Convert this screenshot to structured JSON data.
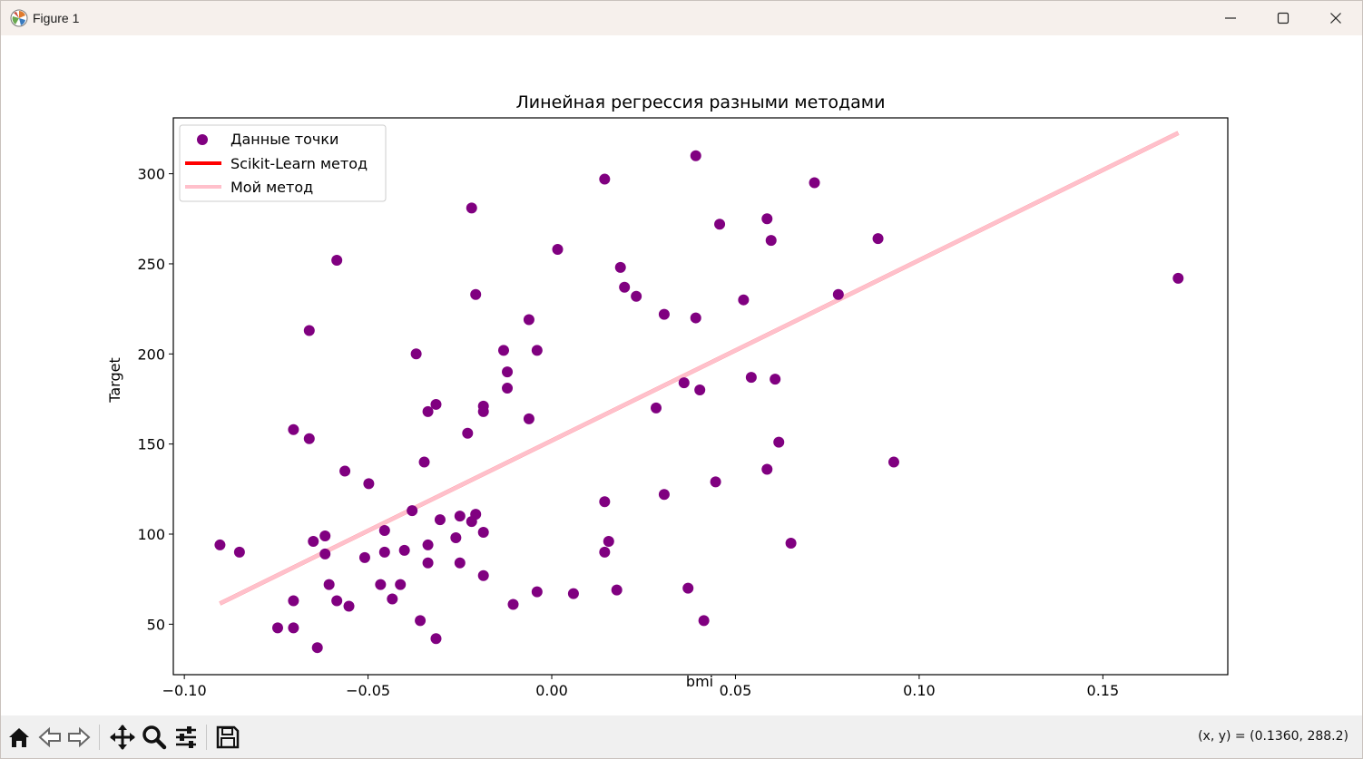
{
  "window": {
    "title": "Figure 1",
    "icon": "matplotlib-icon"
  },
  "controls": {
    "minimize": "minimize-icon",
    "maximize": "maximize-icon",
    "close": "close-icon"
  },
  "toolbar": {
    "tools": [
      "home-icon",
      "back-icon",
      "forward-icon",
      "pan-icon",
      "zoom-icon",
      "configure-subplots-icon",
      "save-icon"
    ],
    "coordinates": "(x, y) = (0.1360, 288.2)"
  },
  "chart_data": {
    "type": "scatter",
    "title": "Линейная регрессия разными методами",
    "xlabel": "bmi",
    "ylabel": "Target",
    "xlim": [
      -0.103,
      0.184
    ],
    "ylim": [
      22,
      331
    ],
    "xticks": [
      -0.1,
      -0.05,
      0.0,
      0.05,
      0.1,
      0.15
    ],
    "xtick_labels": [
      "−0.10",
      "−0.05",
      "0.00",
      "0.05",
      "0.10",
      "0.15"
    ],
    "yticks": [
      50,
      100,
      150,
      200,
      250,
      300
    ],
    "ytick_labels": [
      "50",
      "100",
      "150",
      "200",
      "250",
      "300"
    ],
    "grid": false,
    "legend_position": "upper-left",
    "legend": [
      {
        "label": "Данные точки",
        "kind": "marker",
        "color": "#800080"
      },
      {
        "label": "Scikit-Learn метод",
        "kind": "line",
        "color": "#ff0000"
      },
      {
        "label": "Мой метод",
        "kind": "line",
        "color": "#ffc0cb"
      }
    ],
    "series": [
      {
        "name": "Данные точки",
        "type": "scatter",
        "color": "#800080",
        "points": [
          [
            -0.0903,
            94
          ],
          [
            -0.085,
            90
          ],
          [
            -0.0746,
            48
          ],
          [
            -0.0703,
            158
          ],
          [
            -0.0703,
            63
          ],
          [
            -0.0703,
            48
          ],
          [
            -0.066,
            213
          ],
          [
            -0.066,
            153
          ],
          [
            -0.0649,
            96
          ],
          [
            -0.0638,
            37
          ],
          [
            -0.0617,
            99
          ],
          [
            -0.0617,
            89
          ],
          [
            -0.0606,
            72
          ],
          [
            -0.0585,
            252
          ],
          [
            -0.0585,
            63
          ],
          [
            -0.0563,
            135
          ],
          [
            -0.0552,
            60
          ],
          [
            -0.0498,
            128
          ],
          [
            -0.0509,
            87
          ],
          [
            -0.0466,
            72
          ],
          [
            -0.0455,
            102
          ],
          [
            -0.0455,
            90
          ],
          [
            -0.0434,
            64
          ],
          [
            -0.0412,
            72
          ],
          [
            -0.0401,
            91
          ],
          [
            -0.038,
            113
          ],
          [
            -0.0369,
            200
          ],
          [
            -0.0358,
            52
          ],
          [
            -0.0347,
            140
          ],
          [
            -0.0337,
            168
          ],
          [
            -0.0337,
            94
          ],
          [
            -0.0337,
            84
          ],
          [
            -0.0315,
            172
          ],
          [
            -0.0315,
            42
          ],
          [
            -0.0304,
            108
          ],
          [
            -0.0261,
            98
          ],
          [
            -0.025,
            110
          ],
          [
            -0.025,
            84
          ],
          [
            -0.0229,
            156
          ],
          [
            -0.0218,
            107
          ],
          [
            -0.0218,
            281
          ],
          [
            -0.0207,
            111
          ],
          [
            -0.0207,
            233
          ],
          [
            -0.0186,
            171
          ],
          [
            -0.0186,
            168
          ],
          [
            -0.0186,
            101
          ],
          [
            -0.0186,
            77
          ],
          [
            -0.0131,
            202
          ],
          [
            -0.0121,
            190
          ],
          [
            -0.0121,
            181
          ],
          [
            -0.0105,
            61
          ],
          [
            -0.0062,
            219
          ],
          [
            -0.0062,
            164
          ],
          [
            -0.004,
            202
          ],
          [
            -0.004,
            68
          ],
          [
            0.0016,
            258
          ],
          [
            0.0059,
            67
          ],
          [
            0.0144,
            297
          ],
          [
            0.0144,
            118
          ],
          [
            0.0144,
            90
          ],
          [
            0.0155,
            96
          ],
          [
            0.0177,
            69
          ],
          [
            0.0187,
            248
          ],
          [
            0.0198,
            237
          ],
          [
            0.023,
            232
          ],
          [
            0.0284,
            170
          ],
          [
            0.0306,
            222
          ],
          [
            0.0306,
            122
          ],
          [
            0.036,
            184
          ],
          [
            0.0371,
            70
          ],
          [
            0.0392,
            310
          ],
          [
            0.0392,
            220
          ],
          [
            0.0403,
            180
          ],
          [
            0.0414,
            52
          ],
          [
            0.0446,
            129
          ],
          [
            0.0457,
            272
          ],
          [
            0.0522,
            230
          ],
          [
            0.0543,
            187
          ],
          [
            0.0586,
            275
          ],
          [
            0.0586,
            136
          ],
          [
            0.0597,
            263
          ],
          [
            0.0608,
            186
          ],
          [
            0.0618,
            151
          ],
          [
            0.0651,
            95
          ],
          [
            0.0715,
            295
          ],
          [
            0.078,
            233
          ],
          [
            0.0888,
            264
          ],
          [
            0.0931,
            140
          ],
          [
            0.1705,
            242
          ]
        ]
      },
      {
        "name": "Scikit-Learn метод",
        "type": "line",
        "color": "#ff0000",
        "x": [
          -0.0903,
          0.1705
        ],
        "y": [
          61.5,
          322.6
        ]
      },
      {
        "name": "Мой метод",
        "type": "line",
        "color": "#ffc0cb",
        "x": [
          -0.0903,
          0.1705
        ],
        "y": [
          61.5,
          322.6
        ]
      }
    ]
  }
}
